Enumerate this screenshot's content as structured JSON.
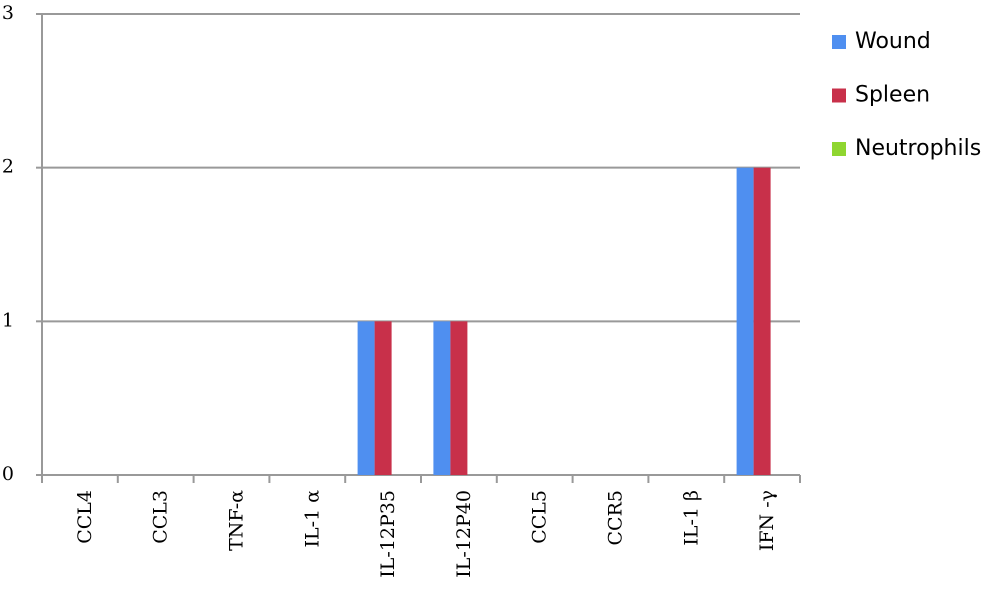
{
  "chart_data": {
    "type": "bar",
    "categories": [
      "CCL4",
      "CCL3",
      "TNF-α",
      "IL-1 α",
      "IL-12P35",
      "IL-12P40",
      "CCL5",
      "CCR5",
      "IL-1 β",
      "IFN -γ"
    ],
    "series": [
      {
        "name": "Wound",
        "color": "#4f8ff0",
        "values": [
          0,
          0,
          0,
          0,
          1,
          1,
          0,
          0,
          0,
          2
        ]
      },
      {
        "name": "Spleen",
        "color": "#c8304a",
        "values": [
          0,
          0,
          0,
          0,
          1,
          1,
          0,
          0,
          0,
          2
        ]
      },
      {
        "name": "Neutrophils",
        "color": "#8fd630",
        "values": [
          0,
          0,
          0,
          0,
          0,
          0,
          0,
          0,
          0,
          0
        ]
      }
    ],
    "ylim": [
      0,
      3
    ],
    "yticks": [
      0,
      1,
      2,
      3
    ],
    "grid": true,
    "legend": "right"
  }
}
